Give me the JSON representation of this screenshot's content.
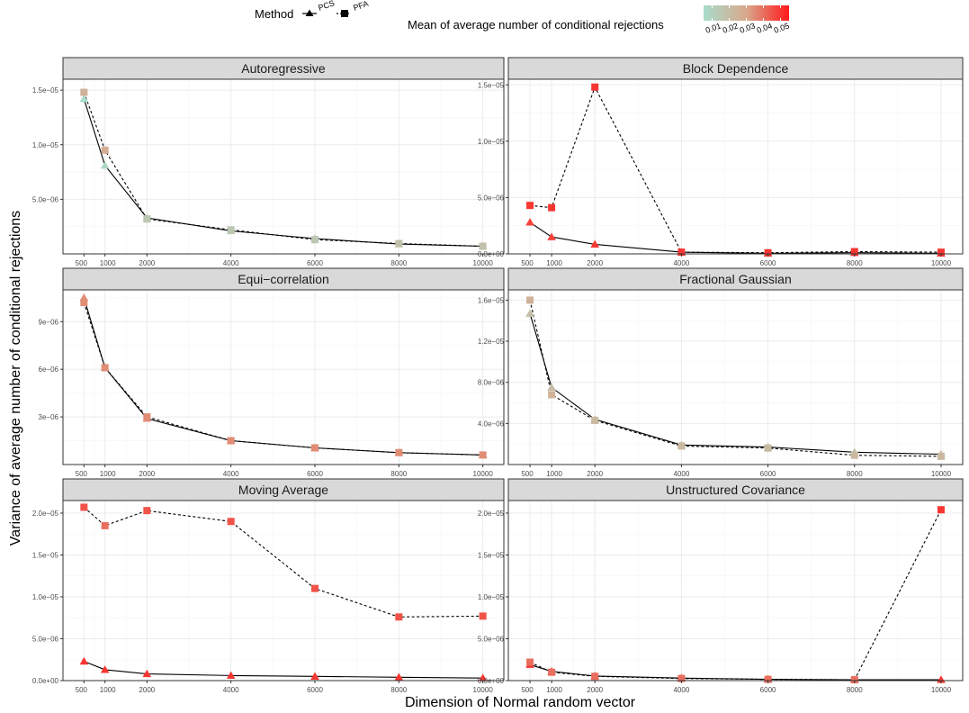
{
  "figure": {
    "ylabel": "Variance of average number of conditional rejections",
    "xlabel": "Dimension of Normal random vector",
    "legend_method": {
      "title": "Method",
      "entries": [
        {
          "label": "PCS",
          "shape": "triangle",
          "line": "solid"
        },
        {
          "label": "PFA",
          "shape": "square",
          "line": "dashed"
        }
      ]
    },
    "legend_color": {
      "title": "Mean of average number of conditional rejections",
      "ticks": [
        "0.01",
        "0.02",
        "0.03",
        "0.04",
        "0.05"
      ],
      "tick_values": [
        0.01,
        0.02,
        0.03,
        0.04,
        0.05
      ],
      "range": [
        0.005,
        0.055
      ],
      "low_color": "#a8dccb",
      "mid_color": "#d9a88c",
      "high_color": "#ff1a1a"
    },
    "colors": {
      "panel_bg": "#ffffff",
      "strip_bg": "#d9d9d9",
      "grid_major": "#ebebeb",
      "grid_minor": "#f5f5f5",
      "panel_border": "#333333"
    }
  },
  "chart_data": [
    {
      "type": "line",
      "title": "Autoregressive",
      "x": [
        500,
        1000,
        2000,
        4000,
        6000,
        8000,
        10000
      ],
      "x_ticks": [
        "500",
        "1000",
        "2000",
        "4000",
        "6000",
        "8000",
        "10000"
      ],
      "ylim": [
        0,
        1.6e-05
      ],
      "y_ticks": [
        5e-06,
        1e-05,
        1.5e-05
      ],
      "y_tick_labels": [
        "5.0e−06",
        "1.0e−05",
        "1.5e−05"
      ],
      "grid": true,
      "series": [
        {
          "name": "PCS",
          "values": [
            1.42e-05,
            8.1e-06,
            3.3e-06,
            2.1e-06,
            1.4e-06,
            9e-07,
            7e-07
          ],
          "color_values": [
            0.005,
            0.008,
            0.012,
            0.012,
            0.012,
            0.015,
            0.015
          ]
        },
        {
          "name": "PFA",
          "values": [
            1.48e-05,
            9.5e-06,
            3.2e-06,
            2.2e-06,
            1.3e-06,
            9.5e-07,
            7e-07
          ],
          "color_values": [
            0.025,
            0.028,
            0.015,
            0.015,
            0.015,
            0.018,
            0.018
          ]
        }
      ]
    },
    {
      "type": "line",
      "title": "Block Dependence",
      "x": [
        500,
        1000,
        2000,
        4000,
        6000,
        8000,
        10000
      ],
      "x_ticks": [
        "500",
        "1000",
        "2000",
        "4000",
        "6000",
        "8000",
        "10000"
      ],
      "ylim": [
        0,
        1.55e-05
      ],
      "y_ticks": [
        0,
        5e-06,
        1e-05,
        1.5e-05
      ],
      "y_tick_labels": [
        "0.0e+00",
        "5.0e−06",
        "1.0e−05",
        "1.5e−05"
      ],
      "grid": true,
      "series": [
        {
          "name": "PCS",
          "values": [
            2.8e-06,
            1.5e-06,
            8.5e-07,
            1.5e-07,
            5e-08,
            1e-07,
            5e-08
          ],
          "color_values": [
            0.048,
            0.048,
            0.05,
            0.05,
            0.05,
            0.05,
            0.05
          ]
        },
        {
          "name": "PFA",
          "values": [
            4.3e-06,
            4.1e-06,
            1.48e-05,
            1.5e-07,
            1e-07,
            2e-07,
            1.5e-07
          ],
          "color_values": [
            0.05,
            0.05,
            0.05,
            0.05,
            0.05,
            0.05,
            0.05
          ]
        }
      ]
    },
    {
      "type": "line",
      "title": "Equi−correlation",
      "x": [
        500,
        1000,
        2000,
        4000,
        6000,
        8000,
        10000
      ],
      "x_ticks": [
        "500",
        "1000",
        "2000",
        "4000",
        "6000",
        "8000",
        "10000"
      ],
      "ylim": [
        0,
        1.1e-05
      ],
      "y_ticks": [
        3e-06,
        6e-06,
        9e-06
      ],
      "y_tick_labels": [
        "3e−06",
        "6e−06",
        "9e−06"
      ],
      "grid": true,
      "series": [
        {
          "name": "PCS",
          "values": [
            1.05e-05,
            6.1e-06,
            2.9e-06,
            1.5e-06,
            1.05e-06,
            7.5e-07,
            6e-07
          ],
          "color_values": [
            0.035,
            0.035,
            0.035,
            0.035,
            0.035,
            0.035,
            0.035
          ]
        },
        {
          "name": "PFA",
          "values": [
            1.02e-05,
            6.1e-06,
            3e-06,
            1.5e-06,
            1.05e-06,
            7.5e-07,
            6e-07
          ],
          "color_values": [
            0.035,
            0.035,
            0.035,
            0.035,
            0.035,
            0.035,
            0.035
          ]
        }
      ]
    },
    {
      "type": "line",
      "title": "Fractional Gaussian",
      "x": [
        500,
        1000,
        2000,
        4000,
        6000,
        8000,
        10000
      ],
      "x_ticks": [
        "500",
        "1000",
        "2000",
        "4000",
        "6000",
        "8000",
        "10000"
      ],
      "ylim": [
        0,
        1.7e-05
      ],
      "y_ticks": [
        4e-06,
        8e-06,
        1.2e-05,
        1.6e-05
      ],
      "y_tick_labels": [
        "4.0e−06",
        "8.0e−06",
        "1.2e−05",
        "1.6e−05"
      ],
      "grid": true,
      "series": [
        {
          "name": "PCS",
          "values": [
            1.47e-05,
            7.5e-06,
            4.4e-06,
            1.9e-06,
            1.7e-06,
            1.2e-06,
            1e-06
          ],
          "color_values": [
            0.02,
            0.02,
            0.02,
            0.018,
            0.02,
            0.018,
            0.02
          ]
        },
        {
          "name": "PFA",
          "values": [
            1.6e-05,
            6.8e-06,
            4.3e-06,
            1.8e-06,
            1.6e-06,
            9e-07,
            8e-07
          ],
          "color_values": [
            0.025,
            0.025,
            0.022,
            0.022,
            0.022,
            0.022,
            0.022
          ]
        }
      ]
    },
    {
      "type": "line",
      "title": "Moving Average",
      "x": [
        500,
        1000,
        2000,
        4000,
        6000,
        8000,
        10000
      ],
      "x_ticks": [
        "500",
        "1000",
        "2000",
        "4000",
        "6000",
        "8000",
        "10000"
      ],
      "ylim": [
        0,
        2.15e-05
      ],
      "y_ticks": [
        0,
        5e-06,
        1e-05,
        1.5e-05,
        2e-05
      ],
      "y_tick_labels": [
        "0.0e+00",
        "5.0e−06",
        "1.0e−05",
        "1.5e−05",
        "2.0e−05"
      ],
      "grid": true,
      "series": [
        {
          "name": "PCS",
          "values": [
            2.3e-06,
            1.3e-06,
            8e-07,
            6e-07,
            5e-07,
            4e-07,
            3e-07
          ],
          "color_values": [
            0.05,
            0.05,
            0.05,
            0.05,
            0.05,
            0.05,
            0.05
          ]
        },
        {
          "name": "PFA",
          "values": [
            2.07e-05,
            1.85e-05,
            2.03e-05,
            1.9e-05,
            1.1e-05,
            7.6e-06,
            7.7e-06
          ],
          "color_values": [
            0.045,
            0.04,
            0.045,
            0.045,
            0.045,
            0.045,
            0.045
          ]
        }
      ]
    },
    {
      "type": "line",
      "title": "Unstructured Covariance",
      "x": [
        500,
        1000,
        2000,
        4000,
        6000,
        8000,
        10000
      ],
      "x_ticks": [
        "500",
        "1000",
        "2000",
        "4000",
        "6000",
        "8000",
        "10000"
      ],
      "ylim": [
        0,
        2.15e-05
      ],
      "y_ticks": [
        0,
        5e-06,
        1e-05,
        1.5e-05,
        2e-05
      ],
      "y_tick_labels": [
        "0.0e+00",
        "5.0e−06",
        "1.0e−05",
        "1.5e−05",
        "2.0e−05"
      ],
      "grid": true,
      "series": [
        {
          "name": "PCS",
          "values": [
            1.9e-06,
            1.1e-06,
            5.5e-07,
            3e-07,
            1.5e-07,
            1e-07,
            1e-07
          ],
          "color_values": [
            0.05,
            0.05,
            0.05,
            0.05,
            0.05,
            0.05,
            0.05
          ]
        },
        {
          "name": "PFA",
          "values": [
            2.2e-06,
            1e-06,
            5e-07,
            2.5e-07,
            1.5e-07,
            1e-07,
            2.04e-05
          ],
          "color_values": [
            0.04,
            0.04,
            0.04,
            0.04,
            0.04,
            0.04,
            0.05
          ]
        }
      ]
    }
  ]
}
